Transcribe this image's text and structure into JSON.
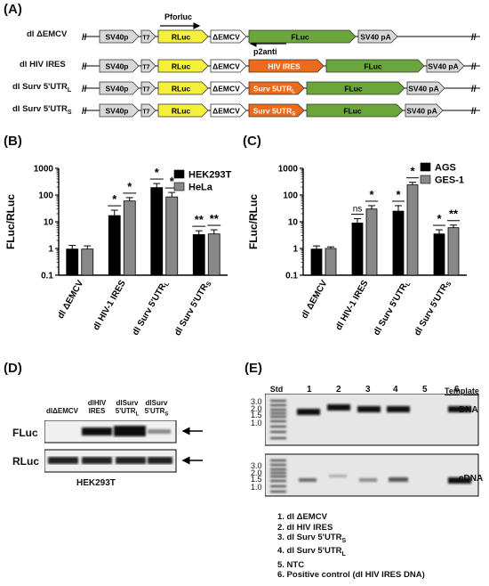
{
  "panels": {
    "A": {
      "letter": "(A)",
      "pforluc_label": "Pforluc",
      "p2anti_label": "p2anti",
      "constructs": [
        {
          "label": "dl ΔEMCV",
          "segments": [
            "SV40p",
            "T7",
            "RLuc",
            "ΔEMCV",
            "FLuc",
            "SV40 pA"
          ]
        },
        {
          "label": "dl HIV IRES",
          "segments": [
            "SV40p",
            "T7",
            "RLuc",
            "ΔEMCV",
            "HIV IRES",
            "FLuc",
            "SV40 pA"
          ]
        },
        {
          "label": "dl Surv 5'UTR",
          "label_sub": "L",
          "segments": [
            "SV40p",
            "T7",
            "RLuc",
            "ΔEMCV",
            "Surv 5UTR",
            "FLuc",
            "SV40 pA"
          ],
          "utr_sub": "L"
        },
        {
          "label": "dl Surv 5'UTR",
          "label_sub": "S",
          "segments": [
            "SV40p",
            "T7",
            "RLuc",
            "ΔEMCV",
            "Surv 5UTR",
            "FLuc",
            "SV40 pA"
          ],
          "utr_sub": "S"
        }
      ]
    },
    "B": {
      "letter": "(B)",
      "chart_data": {
        "type": "bar",
        "ylabel": "FLuc/RLuc",
        "yscale": "log",
        "ylim": [
          0.1,
          1000
        ],
        "yticks": [
          "0.1",
          "1",
          "10",
          "100",
          "1000"
        ],
        "categories": [
          "dl ΔEMCV",
          "dl HIV-1 IRES",
          "dl Surv 5'UTR",
          "dl Surv 5'UTR"
        ],
        "category_subscripts": [
          "",
          "",
          "L",
          "S"
        ],
        "series": [
          {
            "name": "HEK293T",
            "color": "#000000",
            "values": [
              0.95,
              17,
              190,
              3.3
            ],
            "errors": [
              0.35,
              10,
              80,
              1.3
            ],
            "sig": [
              "",
              "*",
              "*",
              "**"
            ]
          },
          {
            "name": "HeLa",
            "color": "#888888",
            "values": [
              0.95,
              60,
              85,
              3.5
            ],
            "errors": [
              0.3,
              20,
              40,
              1.5
            ],
            "sig": [
              "",
              "*",
              "*",
              "**"
            ]
          }
        ],
        "legend_position": "top-right"
      }
    },
    "C": {
      "letter": "(C)",
      "chart_data": {
        "type": "bar",
        "ylabel": "FLuc/RLuc",
        "yscale": "log",
        "ylim": [
          0.1,
          1000
        ],
        "yticks": [
          "0.1",
          "1",
          "10",
          "100",
          "1000"
        ],
        "categories": [
          "dl ΔEMCV",
          "dl HIV-1 IRES",
          "dl Surv 5'UTR",
          "dl Surv 5'UTR"
        ],
        "category_subscripts": [
          "",
          "",
          "L",
          "S"
        ],
        "series": [
          {
            "name": "AGS",
            "color": "#000000",
            "values": [
              0.95,
              9,
              25,
              3.5
            ],
            "errors": [
              0.3,
              4,
              15,
              1.5
            ],
            "sig": [
              "",
              "ns",
              "*",
              "*"
            ]
          },
          {
            "name": "GES-1",
            "color": "#888888",
            "values": [
              1.0,
              30,
              240,
              6
            ],
            "errors": [
              0.15,
              10,
              60,
              1.5
            ],
            "sig": [
              "",
              "*",
              "*",
              "**"
            ]
          }
        ],
        "legend_position": "top-right"
      }
    },
    "D": {
      "letter": "(D)",
      "lanes": [
        "dlΔEMCV",
        "dlHIV IRES",
        "dlSurv 5'UTR",
        "dlSurv 5'UTR"
      ],
      "lane_subs": [
        "",
        "",
        "L",
        "S"
      ],
      "rows": [
        "FLuc",
        "RLuc"
      ],
      "cell_line": "HEK293T"
    },
    "E": {
      "letter": "(E)",
      "ladder_label": "Std 1kb",
      "lanes": [
        "1",
        "2",
        "3",
        "4",
        "5",
        "6"
      ],
      "template_label": "Template",
      "ladder_ticks": [
        "3.0",
        "2.0",
        "1.5",
        "1.0"
      ],
      "rows": [
        "DNA",
        "cDNA"
      ],
      "key": [
        "1. dl ΔEMCV",
        "2. dl HIV IRES",
        "3. dl Surv 5'UTR",
        "4. dl Surv 5'UTR",
        "5. NTC",
        "6. Positive control (dl HIV IRES DNA)"
      ],
      "key_subs": [
        "",
        "",
        "S",
        "L",
        "",
        ""
      ]
    }
  }
}
